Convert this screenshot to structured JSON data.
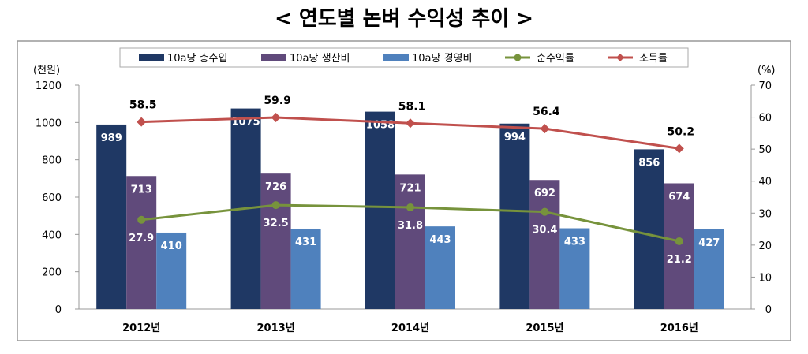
{
  "chart_data": {
    "type": "bar+line",
    "title": "< 연도별 논벼 수익성 추이 >",
    "ylabel_left": "(천원)",
    "ylabel_right": "(%)",
    "ylim_left": [
      0,
      1200
    ],
    "ylim_right": [
      0,
      70
    ],
    "yticks_left": [
      0,
      200,
      400,
      600,
      800,
      1000,
      1200
    ],
    "yticks_right": [
      0,
      10,
      20,
      30,
      40,
      50,
      60,
      70
    ],
    "categories": [
      "2012년",
      "2013년",
      "2014년",
      "2015년",
      "2016년"
    ],
    "bar_series": [
      {
        "name": "10a당 총수입",
        "color": "#1f3864",
        "values": [
          989,
          1075,
          1058,
          994,
          856
        ]
      },
      {
        "name": "10a당 생산비",
        "color": "#604a7b",
        "values": [
          713,
          726,
          721,
          692,
          674
        ]
      },
      {
        "name": "10a당 경영비",
        "color": "#4f81bd",
        "values": [
          410,
          431,
          443,
          433,
          427
        ]
      }
    ],
    "line_series": [
      {
        "name": "순수익률",
        "color": "#77933c",
        "marker": "circle",
        "values": [
          27.9,
          32.5,
          31.8,
          30.4,
          21.2
        ]
      },
      {
        "name": "소득률",
        "color": "#c0504d",
        "marker": "diamond",
        "values": [
          58.5,
          59.9,
          58.1,
          56.4,
          50.2
        ]
      }
    ],
    "legend": "top-center",
    "grid": false
  }
}
